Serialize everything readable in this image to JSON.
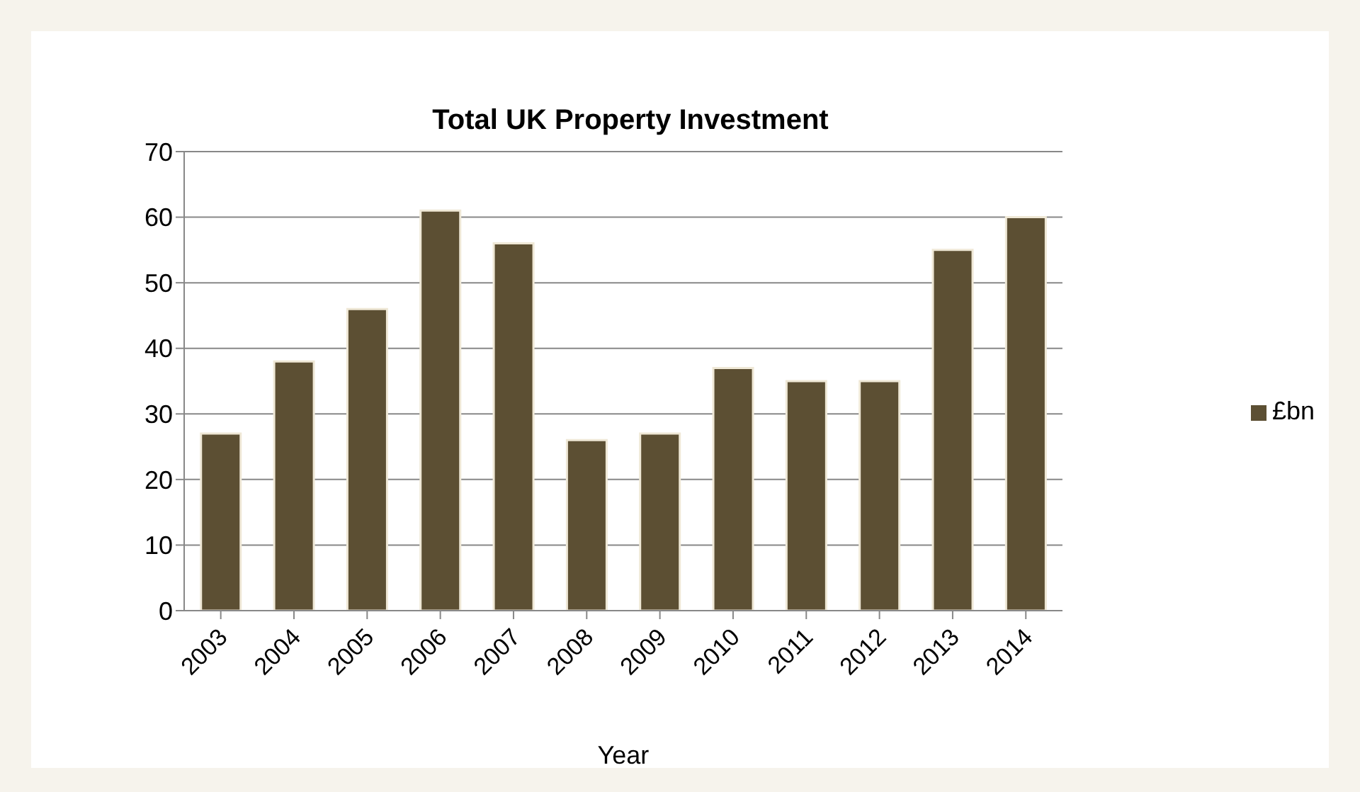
{
  "chart_data": {
    "type": "bar",
    "title": "Total UK Property Investment",
    "xlabel": "Year",
    "categories": [
      "2003",
      "2004",
      "2005",
      "2006",
      "2007",
      "2008",
      "2009",
      "2010",
      "2011",
      "2012",
      "2013",
      "2014"
    ],
    "series": [
      {
        "name": "£bn",
        "color": "#5c4f33",
        "values": [
          27,
          38,
          46,
          61,
          56,
          26,
          27,
          37,
          35,
          35,
          55,
          60
        ]
      }
    ],
    "ylim": [
      0,
      70
    ],
    "yticks": [
      0,
      10,
      20,
      30,
      40,
      50,
      60,
      70
    ],
    "grid": "y",
    "legend": "right"
  }
}
